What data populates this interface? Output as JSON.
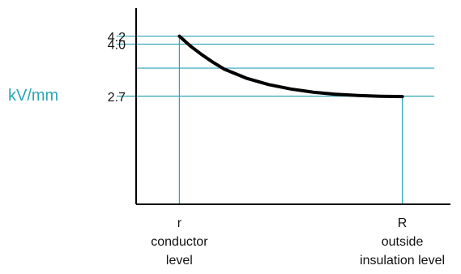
{
  "chart_data": {
    "type": "line",
    "ylabel": "kV/mm",
    "y_ticks": [
      {
        "value": 4.2,
        "label": "4.2"
      },
      {
        "value": 4.0,
        "label": "4.0"
      },
      {
        "value": 2.7,
        "label": "2.7"
      }
    ],
    "y_unlabeled_gridlines": [
      3.4
    ],
    "ylim": [
      0,
      4.9
    ],
    "x_markers": [
      {
        "x": 0,
        "label_lines": [
          "r",
          "conductor",
          "level"
        ]
      },
      {
        "x": 1,
        "label_lines": [
          "R",
          "outside",
          "insulation level"
        ]
      }
    ],
    "xlim": [
      -0.194,
      1.216
    ],
    "series": [
      {
        "x": [
          0,
          0.05,
          0.1,
          0.15,
          0.2,
          0.3,
          0.4,
          0.5,
          0.6,
          0.7,
          0.8,
          0.9,
          1.0
        ],
        "values": [
          4.2,
          3.95,
          3.74,
          3.55,
          3.38,
          3.15,
          2.99,
          2.88,
          2.8,
          2.75,
          2.72,
          2.7,
          2.69
        ]
      }
    ],
    "grid": "horizontal at tick values; vertical at x markers",
    "colors": {
      "axis": "#000000",
      "grid": "#2aa6b8",
      "curve": "#000000",
      "ylabel": "#2aa6b8"
    }
  }
}
